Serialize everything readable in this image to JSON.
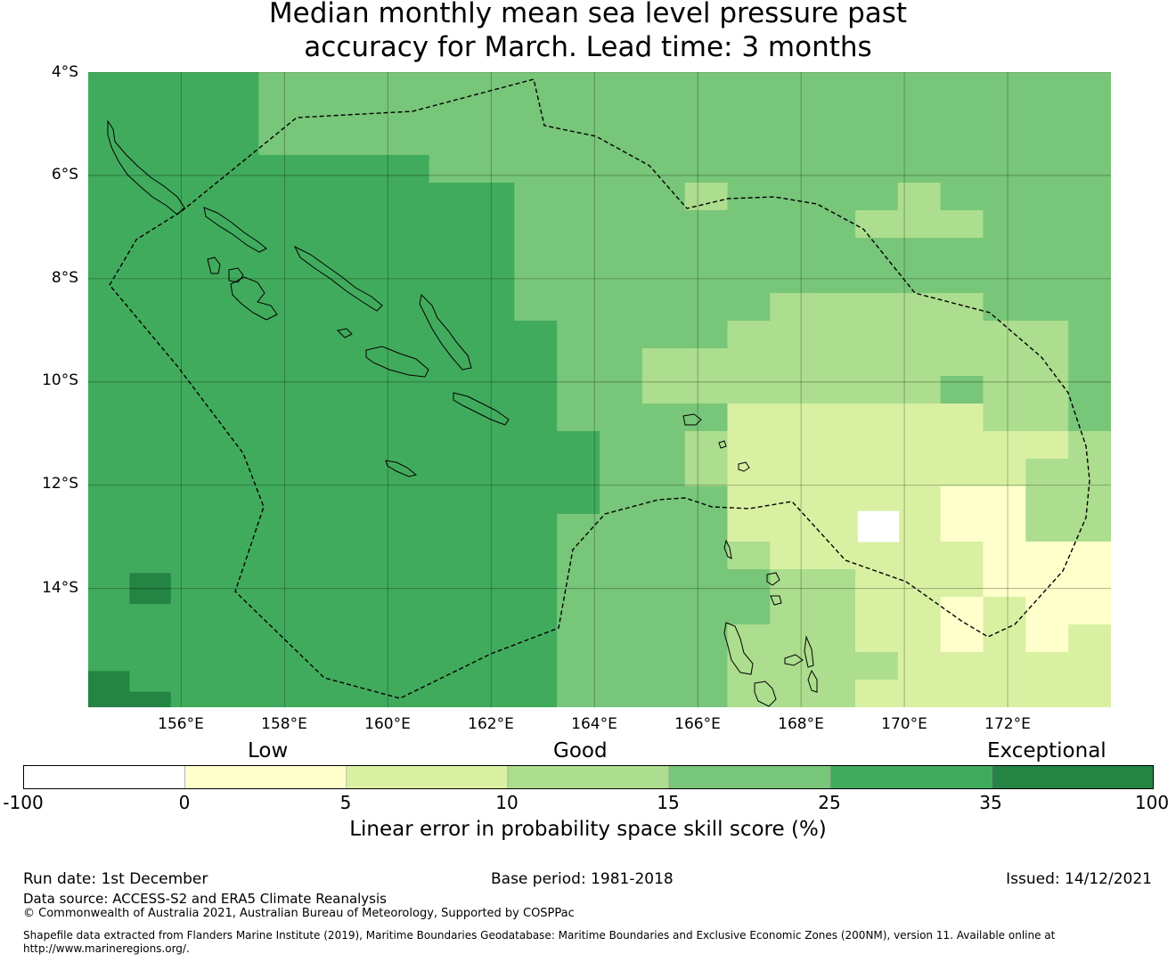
{
  "title_line1": "Median monthly mean sea level pressure past",
  "title_line2": "accuracy for March. Lead time: 3 months",
  "lat_labels": [
    "4°S",
    "6°S",
    "8°S",
    "10°S",
    "12°S",
    "14°S"
  ],
  "lon_labels": [
    "156°E",
    "158°E",
    "160°E",
    "162°E",
    "164°E",
    "166°E",
    "168°E",
    "170°E",
    "172°E"
  ],
  "map": {
    "lon_range": [
      154.2,
      174.0
    ],
    "lat_range": [
      -16.3,
      -4.0
    ],
    "grid_lons": [
      156,
      158,
      160,
      162,
      164,
      166,
      168,
      170,
      172
    ],
    "grid_lats": [
      -4,
      -6,
      -8,
      -10,
      -12,
      -14
    ],
    "colors": [
      "#ffffff",
      "#ffffcc",
      "#d9f0a3",
      "#addd8e",
      "#78c679",
      "#41ab5d",
      "#238443"
    ],
    "boundary_style": "dashed"
  },
  "category_labels": {
    "low": "Low",
    "good": "Good",
    "exceptional": "Exceptional"
  },
  "colorbar": {
    "ticks": [
      "-100",
      "0",
      "5",
      "10",
      "15",
      "25",
      "35",
      "100"
    ],
    "colors": [
      "#ffffff",
      "#ffffcc",
      "#d9f0a3",
      "#addd8e",
      "#78c679",
      "#41ab5d",
      "#238443"
    ],
    "title": "Linear error in probability space skill score (%)"
  },
  "footer": {
    "run_date": "Run date: 1st December",
    "base_period": "Base period: 1981-2018",
    "issued": "Issued: 14/12/2021",
    "data_source": "Data source: ACCESS-S2 and ERA5 Climate Reanalysis",
    "copyright": "© Commonwealth of Australia 2021, Australian Bureau of Meteorology, Supported by COSPPac",
    "shapefile_line1": "Shapefile data extracted from Flanders Marine Institute (2019), Maritime Boundaries Geodatabase: Maritime Boundaries and Exclusive Economic Zones (200NM), version 11. Available online at",
    "shapefile_line2": "http://www.marineregions.org/."
  }
}
